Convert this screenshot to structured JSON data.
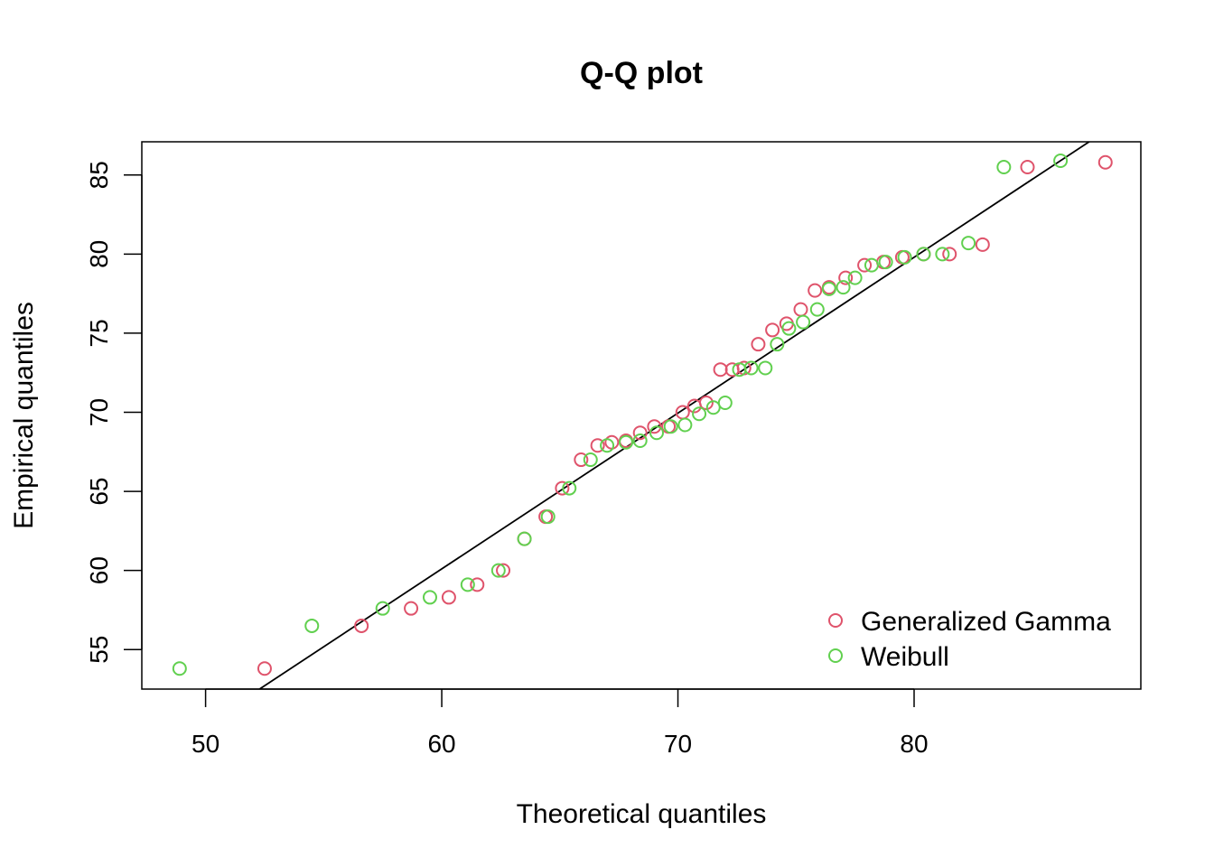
{
  "chart_data": {
    "type": "scatter",
    "title": "Q-Q plot",
    "xlabel": "Theoretical quantiles",
    "ylabel": "Empirical quantiles",
    "xlim": [
      47.3,
      89.6
    ],
    "ylim": [
      52.5,
      87.1
    ],
    "x_ticks": [
      50,
      60,
      70,
      80
    ],
    "y_ticks": [
      55,
      60,
      65,
      70,
      75,
      80,
      85
    ],
    "grid": false,
    "legend_position": "bottom-right",
    "reference_line": {
      "intercept": 1.0,
      "slope": 0.985,
      "color": "#000000"
    },
    "series": [
      {
        "name": "Generalized Gamma",
        "color": "#DF536B",
        "points": [
          [
            52.5,
            53.8
          ],
          [
            56.6,
            56.5
          ],
          [
            58.7,
            57.6
          ],
          [
            60.3,
            58.3
          ],
          [
            61.5,
            59.1
          ],
          [
            62.6,
            60.0
          ],
          [
            63.5,
            62.0
          ],
          [
            64.4,
            63.4
          ],
          [
            65.1,
            65.2
          ],
          [
            65.9,
            67.0
          ],
          [
            66.6,
            67.9
          ],
          [
            67.2,
            68.1
          ],
          [
            67.8,
            68.2
          ],
          [
            68.4,
            68.7
          ],
          [
            69.0,
            69.1
          ],
          [
            69.6,
            69.1
          ],
          [
            70.2,
            70.0
          ],
          [
            70.7,
            70.4
          ],
          [
            71.2,
            70.6
          ],
          [
            71.8,
            72.7
          ],
          [
            72.3,
            72.7
          ],
          [
            72.8,
            72.8
          ],
          [
            73.4,
            74.3
          ],
          [
            74.0,
            75.2
          ],
          [
            74.6,
            75.6
          ],
          [
            75.2,
            76.5
          ],
          [
            75.8,
            77.7
          ],
          [
            76.4,
            77.9
          ],
          [
            77.1,
            78.5
          ],
          [
            77.9,
            79.3
          ],
          [
            78.7,
            79.5
          ],
          [
            79.5,
            79.8
          ],
          [
            80.4,
            80.0
          ],
          [
            81.5,
            80.0
          ],
          [
            82.9,
            80.6
          ],
          [
            84.8,
            85.5
          ],
          [
            88.1,
            85.8
          ]
        ]
      },
      {
        "name": "Weibull",
        "color": "#61D04F",
        "points": [
          [
            48.9,
            53.8
          ],
          [
            54.5,
            56.5
          ],
          [
            57.5,
            57.6
          ],
          [
            59.5,
            58.3
          ],
          [
            61.1,
            59.1
          ],
          [
            62.4,
            60.0
          ],
          [
            63.5,
            62.0
          ],
          [
            64.5,
            63.4
          ],
          [
            65.4,
            65.2
          ],
          [
            66.3,
            67.0
          ],
          [
            67.0,
            67.9
          ],
          [
            67.8,
            68.1
          ],
          [
            68.4,
            68.2
          ],
          [
            69.1,
            68.7
          ],
          [
            69.7,
            69.1
          ],
          [
            70.3,
            69.2
          ],
          [
            70.9,
            69.9
          ],
          [
            71.5,
            70.3
          ],
          [
            72.0,
            70.6
          ],
          [
            72.6,
            72.7
          ],
          [
            73.1,
            72.8
          ],
          [
            73.7,
            72.8
          ],
          [
            74.2,
            74.3
          ],
          [
            74.7,
            75.3
          ],
          [
            75.3,
            75.7
          ],
          [
            75.9,
            76.5
          ],
          [
            76.4,
            77.8
          ],
          [
            77.0,
            77.9
          ],
          [
            77.5,
            78.5
          ],
          [
            78.2,
            79.3
          ],
          [
            78.8,
            79.5
          ],
          [
            79.6,
            79.8
          ],
          [
            80.4,
            80.0
          ],
          [
            81.2,
            80.0
          ],
          [
            82.3,
            80.7
          ],
          [
            83.8,
            85.5
          ],
          [
            86.2,
            85.9
          ]
        ]
      }
    ]
  }
}
